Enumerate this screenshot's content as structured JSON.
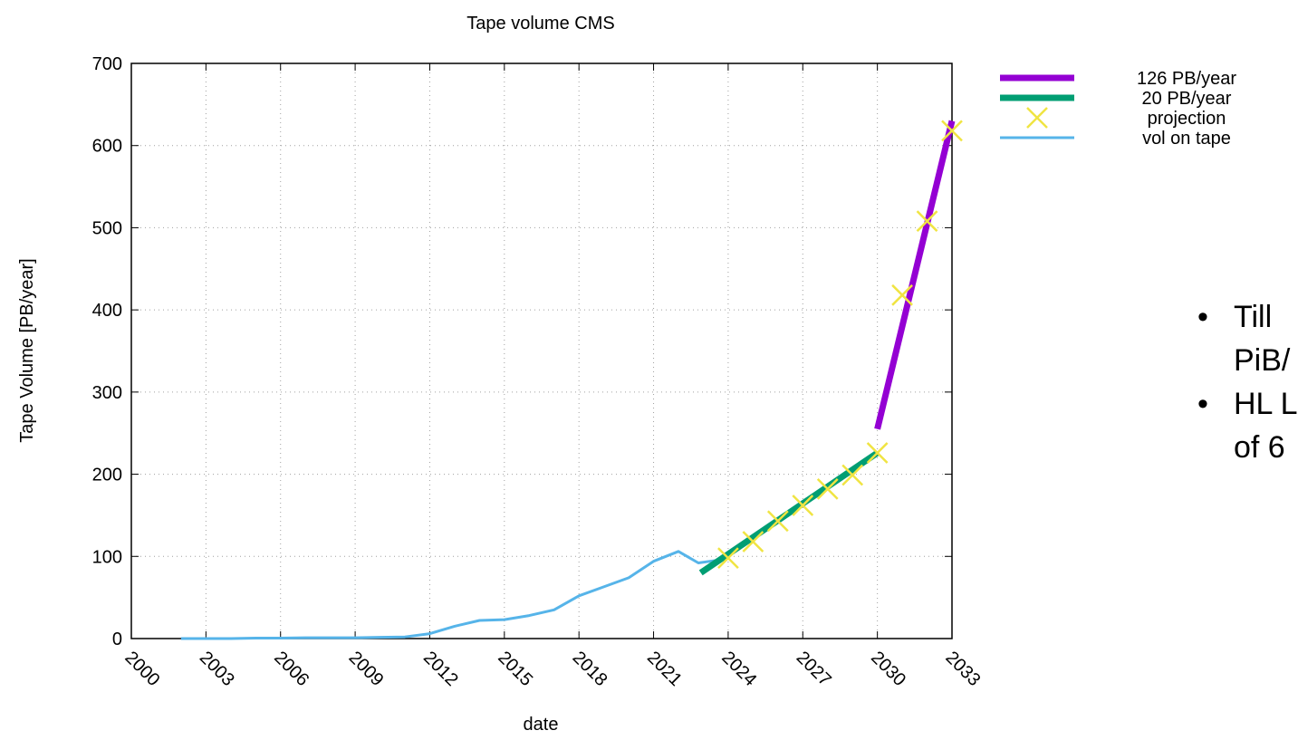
{
  "chart_data": {
    "type": "line",
    "title": "Tape volume CMS",
    "xlabel": "date",
    "ylabel": "Tape Volume [PB/year]",
    "xlim": [
      2000,
      2033
    ],
    "ylim": [
      0,
      700
    ],
    "x_ticks": [
      "2000",
      "2003",
      "2006",
      "2009",
      "2012",
      "2015",
      "2018",
      "2021",
      "2024",
      "2027",
      "2030",
      "2033"
    ],
    "y_ticks": [
      "0",
      "100",
      "200",
      "300",
      "400",
      "500",
      "600",
      "700"
    ],
    "grid": true,
    "legend_position": "top-right, outside plot",
    "series": [
      {
        "name": "126 PB/year",
        "style": "line",
        "color": "#9400d3",
        "x": [
          2030.0,
          2033.0
        ],
        "y": [
          255,
          630
        ]
      },
      {
        "name": "20 PB/year",
        "style": "line",
        "color": "#009e73",
        "x": [
          2022.9,
          2030.0
        ],
        "y": [
          80,
          226
        ]
      },
      {
        "name": "projection",
        "style": "markers",
        "marker": "x",
        "color": "#f0e442",
        "x": [
          2024.0,
          2025.0,
          2026.0,
          2027.0,
          2028.0,
          2029.0,
          2030.0,
          2031.0,
          2032.0,
          2033.0
        ],
        "y": [
          98,
          118,
          143,
          162,
          182,
          199,
          226,
          418,
          508,
          618
        ]
      },
      {
        "name": "vol on tape",
        "style": "line",
        "color": "#56b4e9",
        "x": [
          2002,
          2003,
          2004,
          2005,
          2006,
          2007,
          2008,
          2009,
          2010,
          2011,
          2012,
          2013,
          2014,
          2015,
          2016,
          2017,
          2018,
          2019,
          2020,
          2021,
          2022,
          2022.8,
          2023.5
        ],
        "y": [
          0,
          0,
          0,
          0.5,
          0.5,
          1,
          1,
          1,
          1.5,
          2,
          6,
          15,
          22,
          23,
          28,
          35,
          52,
          63,
          74,
          94,
          106,
          92,
          95
        ]
      }
    ]
  },
  "side_text": {
    "bullets": [
      {
        "symbol": "•",
        "lines": [
          "Till",
          "PiB/"
        ]
      },
      {
        "symbol": "•",
        "lines": [
          "HL L",
          "of 6"
        ]
      }
    ]
  }
}
